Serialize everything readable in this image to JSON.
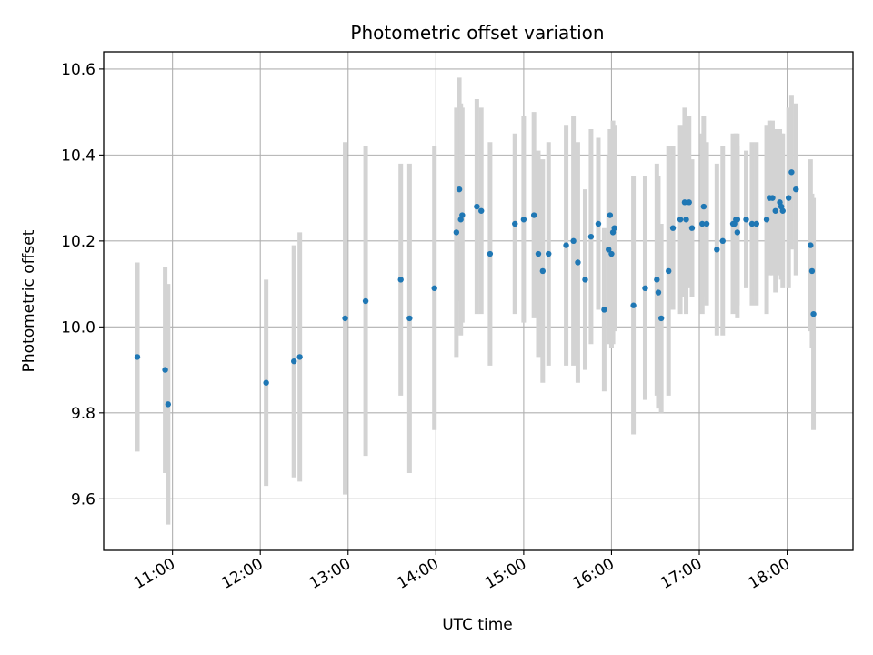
{
  "chart_data": {
    "type": "scatter",
    "title": "Photometric offset variation",
    "xlabel": "UTC time",
    "ylabel": "Photometric offset",
    "x_tick_labels": [
      "11:00",
      "12:00",
      "13:00",
      "14:00",
      "15:00",
      "16:00",
      "17:00",
      "18:00"
    ],
    "y_tick_labels": [
      "9.6",
      "9.8",
      "10.0",
      "10.2",
      "10.4",
      "10.6"
    ],
    "xlim": [
      "10:13",
      "18:45"
    ],
    "ylim": [
      9.48,
      10.64
    ],
    "grid": true,
    "marker_color": "#1f77b4",
    "errorbar_color": "#d3d3d3",
    "series": [
      {
        "x": [
          "10:36",
          "10:55",
          "10:57",
          "12:04",
          "12:23",
          "12:27",
          "12:58",
          "13:12",
          "13:36",
          "13:42",
          "13:59",
          "14:14",
          "14:16",
          "14:17",
          "14:18",
          "14:28",
          "14:31",
          "14:37",
          "14:54",
          "15:00",
          "15:07",
          "15:10",
          "15:13",
          "15:17",
          "15:29",
          "15:34",
          "15:37",
          "15:42",
          "15:46",
          "15:51",
          "15:55",
          "15:58",
          "15:59",
          "16:00",
          "16:01",
          "16:02",
          "16:15",
          "16:23",
          "16:31",
          "16:32",
          "16:34",
          "16:39",
          "16:42",
          "16:47",
          "16:50",
          "16:51",
          "16:53",
          "16:55",
          "17:02",
          "17:03",
          "17:05",
          "17:12",
          "17:16",
          "17:23",
          "17:24",
          "17:25",
          "17:26",
          "17:26",
          "17:32",
          "17:36",
          "17:39",
          "17:46",
          "17:48",
          "17:50",
          "17:52",
          "17:55",
          "17:56",
          "17:57",
          "18:01",
          "18:03",
          "18:06",
          "18:16",
          "18:17",
          "18:18"
        ],
        "y": [
          9.93,
          9.9,
          9.82,
          9.87,
          9.92,
          9.93,
          10.02,
          10.06,
          10.11,
          10.02,
          10.09,
          10.22,
          10.32,
          10.25,
          10.26,
          10.28,
          10.27,
          10.17,
          10.24,
          10.25,
          10.26,
          10.17,
          10.13,
          10.17,
          10.19,
          10.2,
          10.15,
          10.11,
          10.21,
          10.24,
          10.04,
          10.18,
          10.26,
          10.17,
          10.22,
          10.23,
          10.05,
          10.09,
          10.11,
          10.08,
          10.02,
          10.13,
          10.23,
          10.25,
          10.29,
          10.25,
          10.29,
          10.23,
          10.24,
          10.28,
          10.24,
          10.18,
          10.2,
          10.24,
          10.24,
          10.25,
          10.22,
          10.25,
          10.25,
          10.24,
          10.24,
          10.25,
          10.3,
          10.3,
          10.27,
          10.29,
          10.28,
          10.27,
          10.3,
          10.36,
          10.32,
          10.19,
          10.13,
          10.03
        ],
        "y_err": [
          0.22,
          0.24,
          0.28,
          0.24,
          0.27,
          0.29,
          0.41,
          0.36,
          0.27,
          0.36,
          0.33,
          0.29,
          0.26,
          0.27,
          0.25,
          0.25,
          0.24,
          0.26,
          0.21,
          0.24,
          0.24,
          0.24,
          0.26,
          0.26,
          0.28,
          0.29,
          0.28,
          0.21,
          0.25,
          0.2,
          0.19,
          0.22,
          0.2,
          0.22,
          0.26,
          0.24,
          0.3,
          0.26,
          0.27,
          0.27,
          0.22,
          0.29,
          0.19,
          0.22,
          0.22,
          0.22,
          0.2,
          0.16,
          0.21,
          0.21,
          0.19,
          0.2,
          0.22,
          0.21,
          0.2,
          0.2,
          0.2,
          0.2,
          0.16,
          0.19,
          0.19,
          0.22,
          0.18,
          0.18,
          0.19,
          0.17,
          0.17,
          0.18,
          0.21,
          0.18,
          0.2,
          0.2,
          0.18,
          0.27
        ]
      }
    ]
  }
}
